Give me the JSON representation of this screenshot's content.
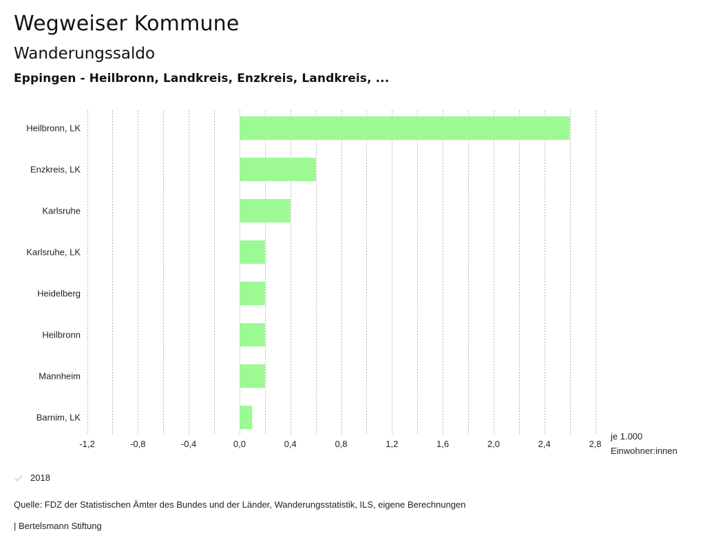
{
  "header": {
    "title": "Wegweiser Kommune",
    "subtitle": "Wanderungssaldo",
    "region": "Eppingen - Heilbronn, Landkreis, Enzkreis, Landkreis, ..."
  },
  "chart_data": {
    "type": "bar",
    "orientation": "horizontal",
    "title": "Wanderungssaldo",
    "categories": [
      "Heilbronn, LK",
      "Enzkreis, LK",
      "Karlsruhe",
      "Karlsruhe, LK",
      "Heidelberg",
      "Heilbronn",
      "Mannheim",
      "Barnim, LK"
    ],
    "series": [
      {
        "name": "2018",
        "color": "#9cf994",
        "values": [
          2.6,
          0.6,
          0.4,
          0.2,
          0.2,
          0.2,
          0.2,
          0.1
        ]
      }
    ],
    "xlim": [
      -1.2,
      2.8
    ],
    "x_ticks": [
      -1.2,
      -0.8,
      -0.4,
      0.0,
      0.4,
      0.8,
      1.2,
      1.6,
      2.0,
      2.4,
      2.8
    ],
    "x_tick_labels": [
      "-1,2",
      "-0,8",
      "-0,4",
      "0,0",
      "0,4",
      "0,8",
      "1,2",
      "1,6",
      "2,0",
      "2,4",
      "2,8"
    ],
    "gridlines_step": 0.2,
    "grid": true,
    "xlabel_line1": "je 1.000",
    "xlabel_line2": "Einwohner:innen",
    "legend_placement": "bottom-left"
  },
  "legend": {
    "items": [
      {
        "label": "2018",
        "color": "#9cf994",
        "icon": "check-icon"
      }
    ]
  },
  "footer": {
    "source": "Quelle: FDZ der Statistischen Ämter des Bundes und der Länder, Wanderungsstatistik, ILS, eigene Berechnungen",
    "credit": "| Bertelsmann Stiftung"
  }
}
